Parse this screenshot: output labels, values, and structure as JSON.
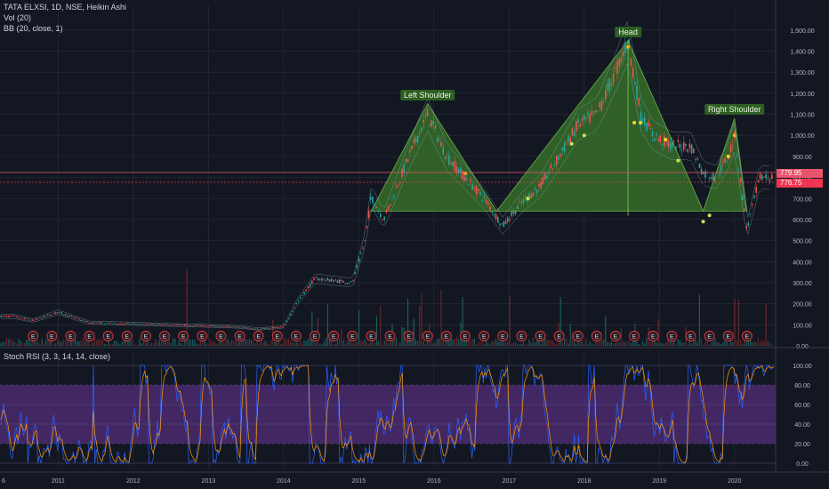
{
  "header": {
    "symbol_line": "TATA ELXSI, 1D, NSE, Heikin Ashi",
    "vol_indicator": "Vol (20)",
    "bb_indicator": "BB (20, close, 1)",
    "rsi_indicator": "Stoch RSI (3, 3, 14, 14, close)"
  },
  "price_tags": {
    "upper": "779.95",
    "lower": "776.75"
  },
  "colors": {
    "background": "#131722",
    "grid": "#2a2e39",
    "up": "#26a69a",
    "down": "#ef5350",
    "pattern_fill": "#3b7a2b",
    "rsi_band": "#4b2a6e",
    "rsi_k": "#2962ff",
    "rsi_d": "#ff9800",
    "earnings": "#e53935"
  },
  "chart_data": [
    {
      "type": "line",
      "title": "TATA ELXSI, 1D, NSE, Heikin Ashi",
      "x_tick_labels": [
        "6",
        "2011",
        "2012",
        "2013",
        "2014",
        "2015",
        "2016",
        "2017",
        "2018",
        "2019",
        "2020"
      ],
      "y_tick_labels": [
        "1,500.00",
        "1,400.00",
        "1,300.00",
        "1,200.00",
        "1,100.00",
        "1,000.00",
        "900.00",
        "800.00",
        "700.00",
        "600.00",
        "500.00",
        "400.00",
        "300.00",
        "200.00",
        "100.00",
        "0.00"
      ],
      "ylim": [
        0,
        1550
      ],
      "series": [
        {
          "x": [
            "2010-06",
            "2010-09",
            "2011-01",
            "2011-06",
            "2012-01",
            "2012-06",
            "2013-01",
            "2013-06",
            "2013-09",
            "2014-01",
            "2014-03",
            "2014-06",
            "2014-09",
            "2014-12",
            "2015-02",
            "2015-03",
            "2015-05",
            "2015-07",
            "2015-09",
            "2015-12",
            "2016-03",
            "2016-06",
            "2016-09",
            "2016-12",
            "2017-03",
            "2017-06",
            "2017-09",
            "2017-12",
            "2018-03",
            "2018-06",
            "2018-08",
            "2018-10",
            "2018-12",
            "2019-03",
            "2019-06",
            "2019-08",
            "2019-10",
            "2019-12",
            "2020-01",
            "2020-03",
            "2020-05"
          ],
          "values": [
            140,
            120,
            160,
            110,
            105,
            100,
            95,
            90,
            80,
            90,
            200,
            320,
            310,
            300,
            500,
            710,
            600,
            750,
            900,
            1100,
            900,
            800,
            700,
            570,
            680,
            760,
            900,
            1050,
            1100,
            1300,
            1450,
            1100,
            1000,
            950,
            950,
            820,
            800,
            900,
            1000,
            550,
            800
          ]
        }
      ],
      "pattern": {
        "labels": [
          {
            "text": "Left Shoulder",
            "x": "2015-12",
            "y": 1150
          },
          {
            "text": "Head",
            "x": "2018-08",
            "y": 1450
          },
          {
            "text": "Right Shoulder",
            "x": "2020-01",
            "y": 1080
          }
        ],
        "neckline": 640
      },
      "earnings_markers": [
        "2010-09",
        "2010-12",
        "2011-03",
        "2011-06",
        "2011-09",
        "2011-12",
        "2012-03",
        "2012-06",
        "2012-09",
        "2012-12",
        "2013-03",
        "2013-06",
        "2013-09",
        "2013-12",
        "2014-03",
        "2014-06",
        "2014-09",
        "2014-12",
        "2015-03",
        "2015-06",
        "2015-09",
        "2015-12",
        "2016-03",
        "2016-06",
        "2016-09",
        "2016-12",
        "2017-03",
        "2017-06",
        "2017-09",
        "2017-12",
        "2018-03",
        "2018-06",
        "2018-09",
        "2018-12",
        "2019-03",
        "2019-06",
        "2019-09",
        "2019-12",
        "2020-03"
      ]
    },
    {
      "type": "line",
      "title": "Stoch RSI (3, 3, 14, 14, close)",
      "y_tick_labels": [
        "100.00",
        "80.00",
        "60.00",
        "40.00",
        "20.00",
        "0.00"
      ],
      "ylim": [
        0,
        100
      ],
      "band": [
        20,
        80
      ]
    }
  ]
}
